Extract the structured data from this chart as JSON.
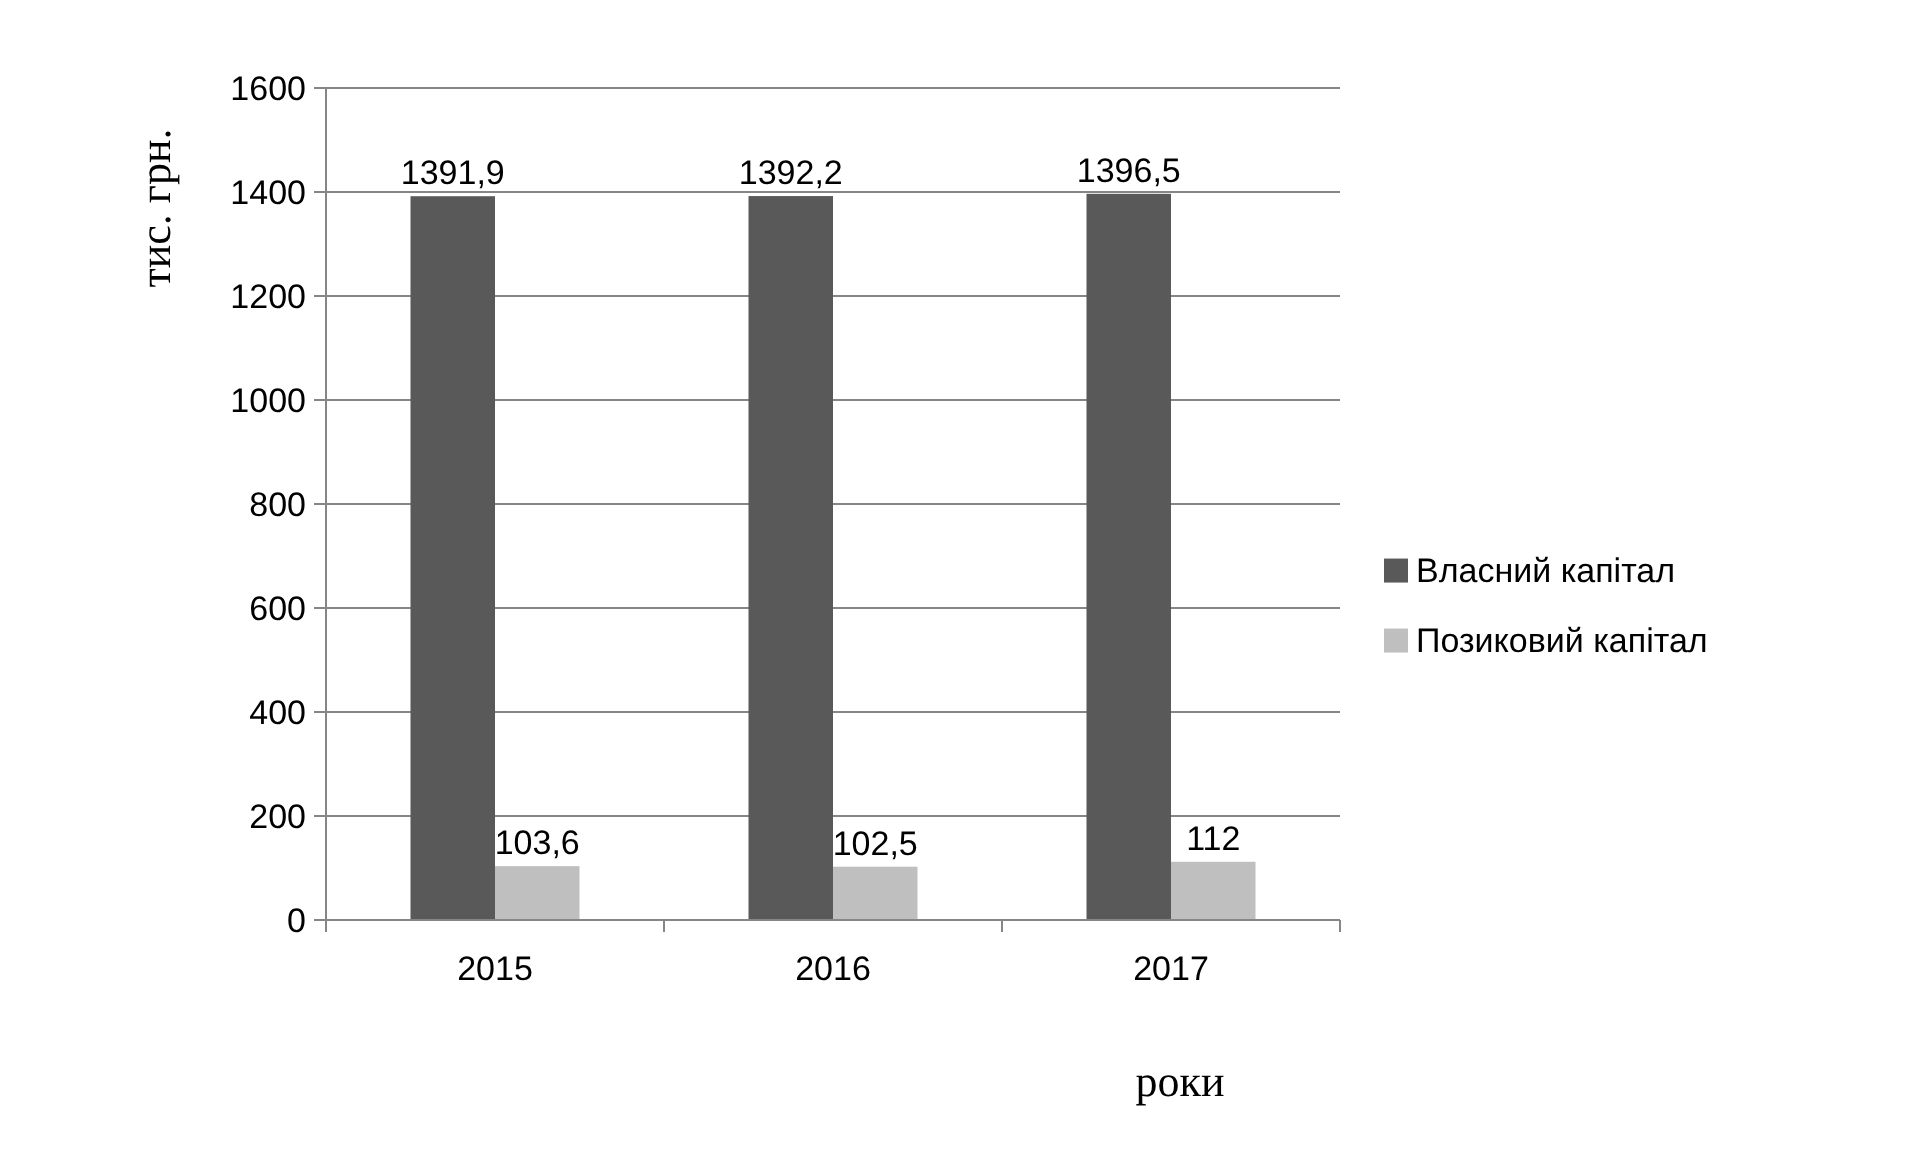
{
  "chart_data": {
    "type": "bar",
    "categories": [
      "2015",
      "2016",
      "2017"
    ],
    "series": [
      {
        "name": "Власний капітал",
        "color": "#595959",
        "values": [
          1391.9,
          1392.2,
          1396.5
        ],
        "value_labels": [
          "1391,9",
          "1392,2",
          "1396,5"
        ]
      },
      {
        "name": "Позиковий капітал",
        "color": "#bfbfbf",
        "values": [
          103.6,
          102.5,
          112
        ],
        "value_labels": [
          "103,6",
          "102,5",
          "112"
        ]
      }
    ],
    "ylim": [
      0,
      1600
    ],
    "yticks": [
      0,
      200,
      400,
      600,
      800,
      1000,
      1200,
      1400,
      1600
    ],
    "grid": "y",
    "legend": "right",
    "ylabel": "тис. грн.",
    "xlabel": "роки"
  }
}
